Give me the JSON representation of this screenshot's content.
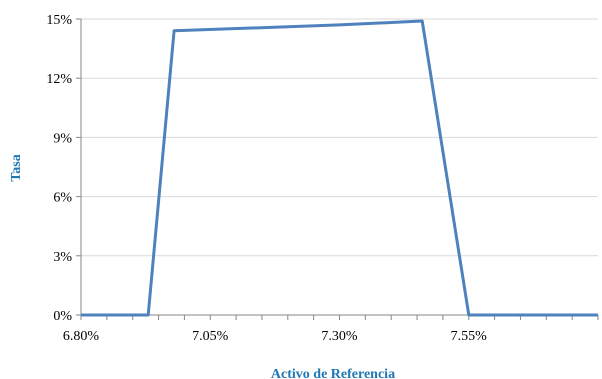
{
  "chart_data": {
    "type": "line",
    "xlabel": "Activo de Referencia",
    "ylabel": "Tasa",
    "x_tick_labels": [
      "6.80%",
      "7.05%",
      "7.30%",
      "7.55%"
    ],
    "y_tick_labels": [
      "0%",
      "3%",
      "6%",
      "9%",
      "12%",
      "15%"
    ],
    "xlim": [
      6.8,
      7.8
    ],
    "ylim": [
      0,
      15
    ],
    "x_ticks": [
      6.8,
      7.05,
      7.3,
      7.55
    ],
    "y_ticks": [
      0,
      3,
      6,
      9,
      12,
      15
    ],
    "x_minor_tick_step": 0.05,
    "grid": true,
    "legend": "none",
    "colors": {
      "series": "#4f81bd",
      "axis_title": "#1f77b4",
      "grid": "#d9d9d9"
    },
    "series": [
      {
        "x": [
          6.8,
          6.88,
          6.93,
          6.98,
          7.3,
          7.46,
          7.55,
          7.6,
          7.8
        ],
        "y": [
          0,
          0,
          0,
          14.4,
          14.7,
          14.9,
          0,
          0,
          0
        ]
      }
    ]
  }
}
